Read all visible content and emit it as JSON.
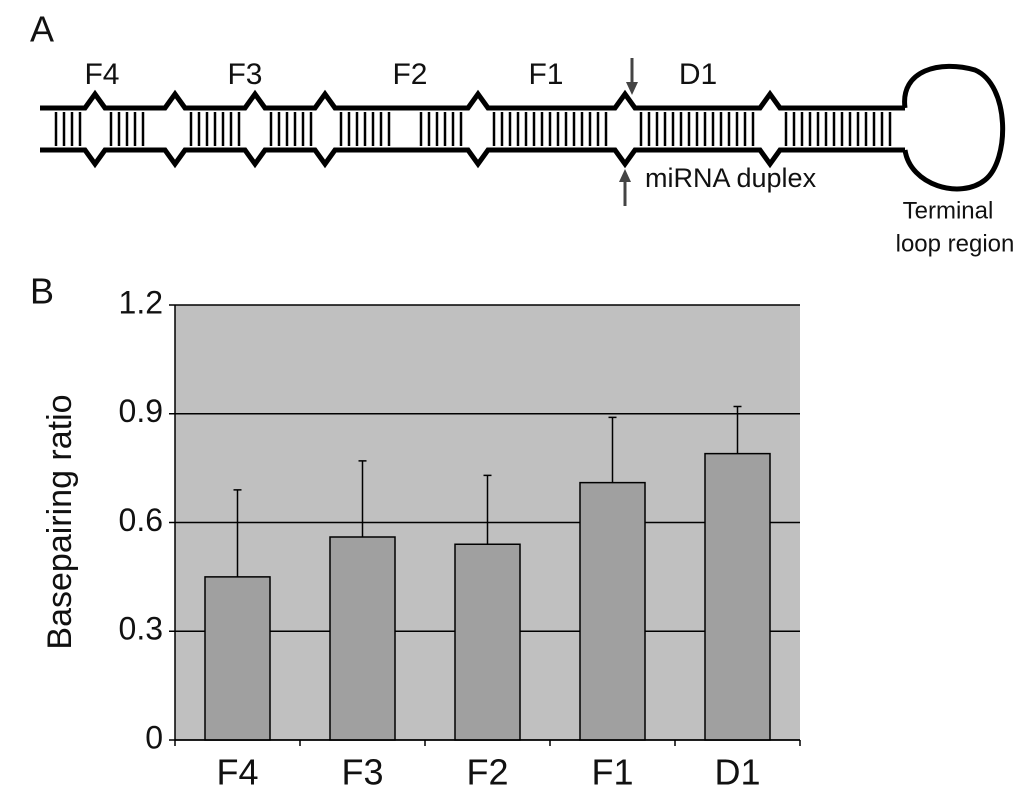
{
  "diagram": {
    "panel_label": "A",
    "segments": [
      "F4",
      "F3",
      "F2",
      "F1",
      "D1"
    ],
    "duplex_label": "miRNA duplex",
    "loop_label": [
      "Terminal",
      "loop region"
    ]
  },
  "chart_data": {
    "type": "bar",
    "panel_label": "B",
    "ylabel": "Basepairing ratio",
    "categories": [
      "F4",
      "F3",
      "F2",
      "F1",
      "D1"
    ],
    "values": [
      0.45,
      0.56,
      0.54,
      0.71,
      0.79
    ],
    "errors": [
      0.24,
      0.21,
      0.19,
      0.18,
      0.13
    ],
    "color": "#a0a0a0",
    "background": "#c0c0c0",
    "ylim": [
      0,
      1.2
    ],
    "yticks": [
      0,
      0.3,
      0.6,
      0.9,
      1.2
    ],
    "grid": true
  }
}
